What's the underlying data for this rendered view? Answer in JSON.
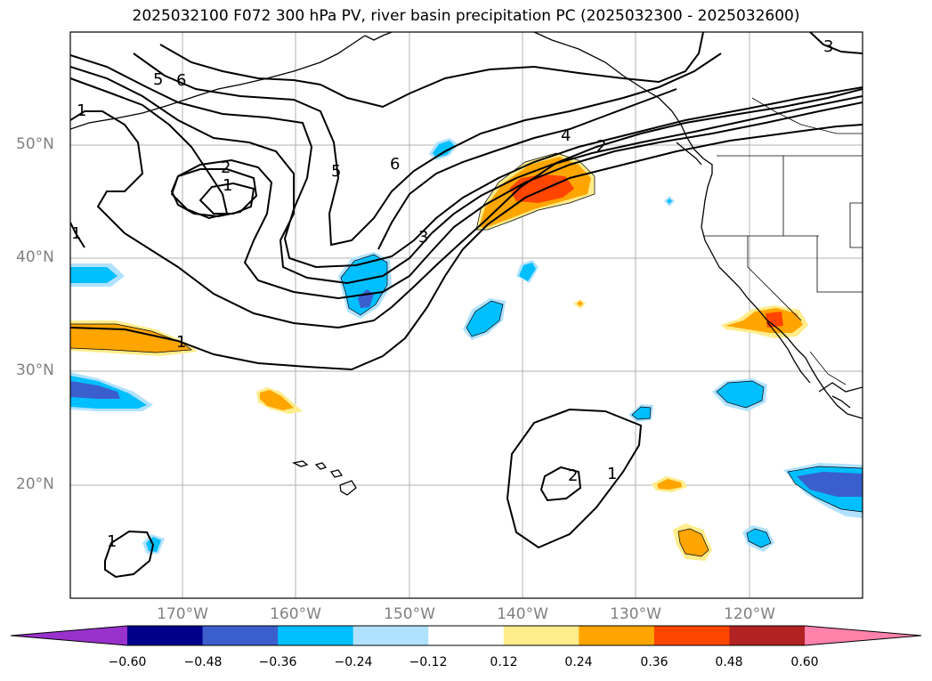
{
  "title": "2025032100 F072 300 hPa PV, river basin precipitation PC (2025032300 - 2025032600)",
  "lat_labels": [
    "50°N",
    "40°N",
    "30°N",
    "20°N"
  ],
  "lon_labels": [
    "170°W",
    "160°W",
    "150°W",
    "140°W",
    "130°W",
    "120°W"
  ],
  "contour_labels": [
    "5",
    "6",
    "1",
    "2",
    "1",
    "1",
    "5",
    "6",
    "4",
    "2",
    "3",
    "1",
    "2",
    "1",
    "1",
    "3"
  ],
  "colorbar": {
    "ticks": [
      "−0.60",
      "−0.48",
      "−0.36",
      "−0.24",
      "−0.12",
      "0.12",
      "0.24",
      "0.36",
      "0.48",
      "0.60"
    ],
    "colors": [
      "#9932cc",
      "#00008b",
      "#3a5fcd",
      "#00bfff",
      "#b0e2ff",
      "#ffffff",
      "#ffec8b",
      "#ffa500",
      "#ff4500",
      "#b22222",
      "#ff82ab"
    ]
  },
  "colors": {
    "neg_light": "#b0e2ff",
    "neg_mid": "#00bfff",
    "neg_strong": "#3a5fcd",
    "pos_light": "#ffec8b",
    "pos_mid": "#ffa500",
    "pos_strong": "#ff4500",
    "grid": "#b0b0b0",
    "axis_label": "#808080"
  }
}
